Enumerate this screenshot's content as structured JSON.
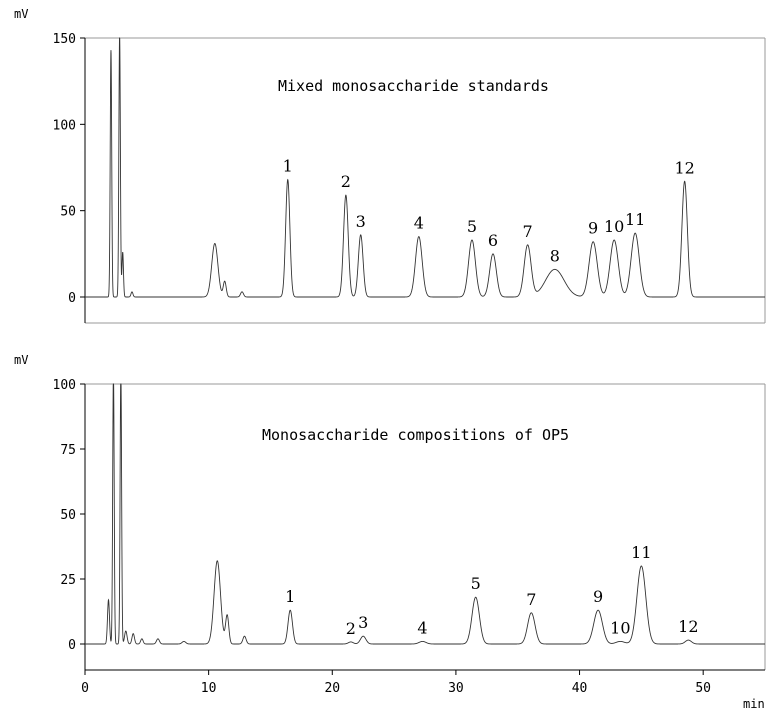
{
  "chart_data": [
    {
      "type": "line",
      "title": "Mixed monosaccharide standards",
      "ylabel": "mV",
      "xlabel": "",
      "xlim": [
        0,
        55
      ],
      "ylim": [
        -15,
        150
      ],
      "yticks": [
        0,
        50,
        100,
        150
      ],
      "xticks": [],
      "grid": false,
      "baseline_spikes": [
        {
          "x": 2.1,
          "height": 143,
          "width": 0.06
        },
        {
          "x": 2.8,
          "height": 152,
          "width": 0.06
        },
        {
          "x": 3.05,
          "height": 26,
          "width": 0.06
        },
        {
          "x": 3.8,
          "height": 3,
          "width": 0.08
        }
      ],
      "peaks": [
        {
          "label": "",
          "x": 10.5,
          "height": 31,
          "width": 0.25
        },
        {
          "label": "",
          "x": 11.3,
          "height": 9,
          "width": 0.12
        },
        {
          "label": "",
          "x": 12.7,
          "height": 3,
          "width": 0.12
        },
        {
          "label": "1",
          "x": 16.4,
          "height": 68,
          "width": 0.17
        },
        {
          "label": "2",
          "x": 21.1,
          "height": 59,
          "width": 0.19
        },
        {
          "label": "3",
          "x": 22.3,
          "height": 36,
          "width": 0.19
        },
        {
          "label": "4",
          "x": 27.0,
          "height": 35,
          "width": 0.27
        },
        {
          "label": "5",
          "x": 31.3,
          "height": 33,
          "width": 0.28
        },
        {
          "label": "6",
          "x": 33.0,
          "height": 25,
          "width": 0.27
        },
        {
          "label": "7",
          "x": 35.8,
          "height": 30,
          "width": 0.28
        },
        {
          "label": "8",
          "x": 38.0,
          "height": 16,
          "width": 0.75
        },
        {
          "label": "9",
          "x": 41.1,
          "height": 32,
          "width": 0.33
        },
        {
          "label": "10",
          "x": 42.8,
          "height": 33,
          "width": 0.33
        },
        {
          "label": "11",
          "x": 44.5,
          "height": 37,
          "width": 0.33
        },
        {
          "label": "12",
          "x": 48.5,
          "height": 67,
          "width": 0.22
        }
      ]
    },
    {
      "type": "line",
      "title": "Monosaccharide compositions of OP5",
      "ylabel": "mV",
      "xlabel": "min",
      "xlim": [
        0,
        55
      ],
      "ylim": [
        -10,
        100
      ],
      "yticks": [
        0,
        25,
        50,
        75,
        100
      ],
      "xticks": [
        0,
        10,
        20,
        30,
        40,
        50
      ],
      "grid": false,
      "baseline_spikes": [
        {
          "x": 1.9,
          "height": 17,
          "width": 0.08
        },
        {
          "x": 2.3,
          "height": 105,
          "width": 0.06
        },
        {
          "x": 2.9,
          "height": 105,
          "width": 0.06
        },
        {
          "x": 3.3,
          "height": 5,
          "width": 0.1
        },
        {
          "x": 3.9,
          "height": 4,
          "width": 0.1
        },
        {
          "x": 4.6,
          "height": 2,
          "width": 0.1
        },
        {
          "x": 5.9,
          "height": 2,
          "width": 0.12
        },
        {
          "x": 8.0,
          "height": 1,
          "width": 0.15
        }
      ],
      "peaks": [
        {
          "label": "",
          "x": 10.7,
          "height": 32,
          "width": 0.26
        },
        {
          "label": "",
          "x": 11.5,
          "height": 11,
          "width": 0.13
        },
        {
          "label": "",
          "x": 12.9,
          "height": 3,
          "width": 0.13
        },
        {
          "label": "1",
          "x": 16.6,
          "height": 13,
          "width": 0.18
        },
        {
          "label": "2",
          "x": 21.5,
          "height": 0.8,
          "width": 0.2
        },
        {
          "label": "3",
          "x": 22.5,
          "height": 3,
          "width": 0.22
        },
        {
          "label": "4",
          "x": 27.3,
          "height": 1,
          "width": 0.28
        },
        {
          "label": "5",
          "x": 31.6,
          "height": 18,
          "width": 0.3
        },
        {
          "label": "7",
          "x": 36.1,
          "height": 12,
          "width": 0.3
        },
        {
          "label": "9",
          "x": 41.5,
          "height": 13,
          "width": 0.35
        },
        {
          "label": "10",
          "x": 43.3,
          "height": 1,
          "width": 0.35
        },
        {
          "label": "11",
          "x": 45.0,
          "height": 30,
          "width": 0.36
        },
        {
          "label": "12",
          "x": 48.8,
          "height": 1.5,
          "width": 0.25
        }
      ]
    }
  ]
}
